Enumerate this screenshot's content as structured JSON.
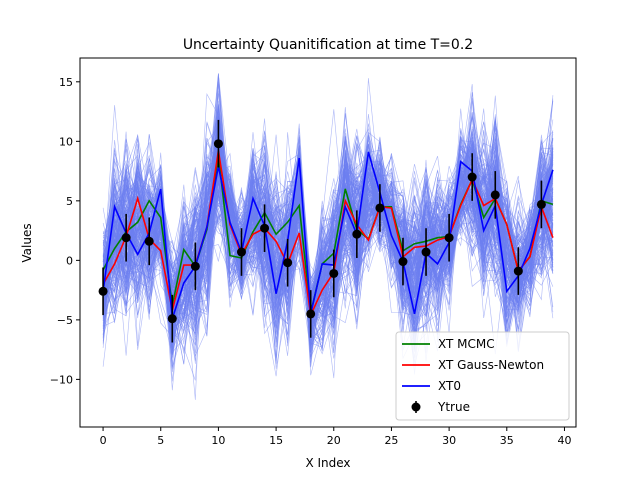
{
  "chart_data": {
    "type": "line",
    "title": "Uncertainty Quanitification at time T=0.2",
    "xlabel": "X Index",
    "ylabel": "Values",
    "xlim": [
      -2,
      41
    ],
    "ylim": [
      -14,
      17
    ],
    "xticks": [
      0,
      5,
      10,
      15,
      20,
      25,
      30,
      35,
      40
    ],
    "yticks": [
      -10,
      -5,
      0,
      5,
      10,
      15
    ],
    "grid": false,
    "legend_position": "lower right",
    "x": [
      0,
      1,
      2,
      3,
      4,
      5,
      6,
      7,
      8,
      9,
      10,
      11,
      12,
      13,
      14,
      15,
      16,
      17,
      18,
      19,
      20,
      21,
      22,
      23,
      24,
      25,
      26,
      27,
      28,
      29,
      30,
      31,
      32,
      33,
      34,
      35,
      36,
      37,
      38,
      39
    ],
    "series": [
      {
        "name": "XT MCMC",
        "color": "#008000",
        "style": "line",
        "values": [
          -0.8,
          1.0,
          2.4,
          3.2,
          5.0,
          3.6,
          -3.8,
          0.9,
          -0.5,
          2.6,
          8.8,
          0.4,
          0.2,
          2.4,
          4.0,
          2.2,
          3.2,
          4.6,
          -4.4,
          -0.3,
          0.6,
          6.0,
          2.6,
          1.8,
          4.5,
          4.5,
          0.8,
          1.4,
          1.6,
          1.9,
          2.0,
          4.7,
          6.8,
          3.6,
          5.2,
          3.0,
          -0.9,
          0.3,
          5.0,
          4.7
        ]
      },
      {
        "name": "XT Gauss-Newton",
        "color": "#ff0000",
        "style": "line",
        "values": [
          -2.0,
          -0.3,
          2.0,
          5.2,
          1.8,
          0.8,
          -4.2,
          -0.4,
          -0.4,
          2.8,
          9.2,
          3.0,
          0.5,
          2.2,
          2.7,
          1.6,
          -0.3,
          2.3,
          -4.6,
          -2.5,
          -1.0,
          5.0,
          3.0,
          1.7,
          4.5,
          4.4,
          0.3,
          1.1,
          1.2,
          1.7,
          2.0,
          4.6,
          6.8,
          4.6,
          5.2,
          3.0,
          -0.9,
          0.3,
          4.5,
          1.9
        ]
      },
      {
        "name": "XT0",
        "color": "#0000ff",
        "style": "line",
        "values": [
          -2.6,
          4.5,
          2.3,
          0.5,
          2.3,
          6.0,
          -4.9,
          -1.9,
          -0.5,
          2.8,
          7.9,
          3.2,
          0.7,
          5.2,
          2.9,
          -2.8,
          1.6,
          8.6,
          -4.5,
          -0.3,
          -0.4,
          4.5,
          2.2,
          9.1,
          5.7,
          2.1,
          -0.1,
          -4.5,
          0.6,
          -0.3,
          1.5,
          8.3,
          7.5,
          2.5,
          4.6,
          -2.6,
          -1.3,
          1.0,
          4.7,
          7.6
        ]
      },
      {
        "name": "Ytrue",
        "color": "#000000",
        "style": "errorbar",
        "x": [
          0,
          2,
          4,
          6,
          8,
          10,
          12,
          14,
          16,
          18,
          20,
          22,
          24,
          26,
          28,
          30,
          32,
          34,
          36,
          38
        ],
        "values": [
          -2.6,
          1.9,
          1.6,
          -4.9,
          -0.5,
          9.8,
          0.7,
          2.7,
          -0.2,
          -4.5,
          -1.1,
          2.2,
          4.4,
          -0.1,
          0.7,
          1.9,
          7.0,
          5.5,
          -0.9,
          4.7
        ],
        "error": 2.0
      }
    ],
    "samples_band": {
      "color": "#6e7ff0",
      "description_values": "ensemble of sampled trajectories around the estimate"
    },
    "legend": [
      "XT MCMC",
      "XT Gauss-Newton",
      "XT0",
      "Ytrue"
    ]
  }
}
